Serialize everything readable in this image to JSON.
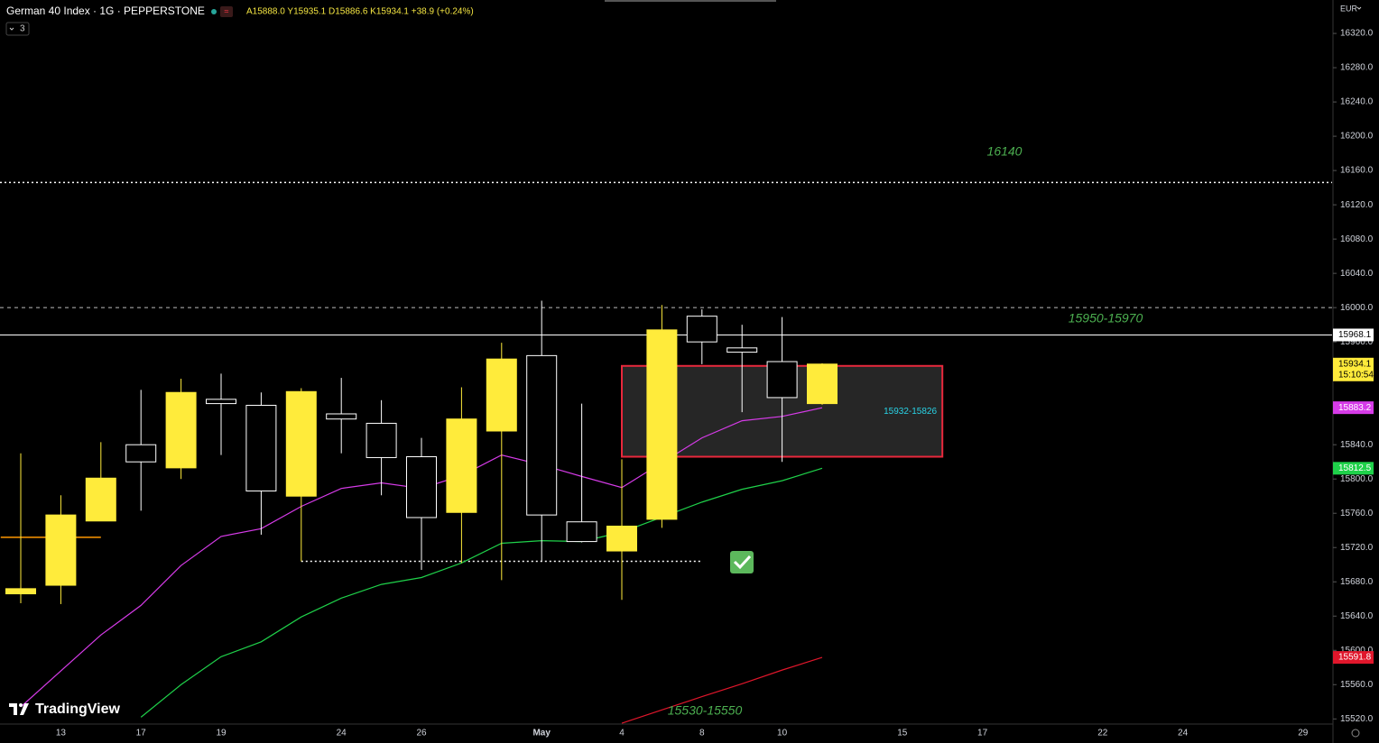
{
  "chart_data": {
    "type": "candlestick",
    "title": "German 40 Index · 1G · PEPPERSTONE",
    "ohlc_readout": "A15888.0 Y15935.1 D15886.6 K15934.1 +38.9 (+0.24%)",
    "indicator_count": "3",
    "currency": "EUR",
    "watermark": "TradingView",
    "countdown": "15:10:54",
    "categories": [
      null,
      "13",
      null,
      "17",
      null,
      "19",
      null,
      null,
      "24",
      null,
      "26",
      null,
      null,
      "May",
      null,
      "4",
      null,
      "8",
      null,
      "10",
      null,
      null,
      "15",
      null,
      "17",
      null,
      null,
      "22",
      null,
      "24",
      null,
      null,
      "29"
    ],
    "open": [
      15666,
      15676,
      15751,
      15840,
      15813,
      15893,
      15886,
      15780,
      15876,
      15865,
      15826,
      15761,
      15856,
      15944,
      15750,
      15716,
      15753,
      15990,
      15953,
      15937,
      15888.0,
      null,
      null,
      null,
      null,
      null,
      null,
      null,
      null,
      null,
      null,
      null,
      null
    ],
    "high": [
      15830,
      15781,
      15843,
      15904,
      15917,
      15923,
      15901,
      15906,
      15918,
      15892,
      15848,
      15907,
      15959,
      16008,
      15888,
      15823,
      16003,
      15998,
      15980,
      15989,
      15935.1,
      null,
      null,
      null,
      null,
      null,
      null,
      null,
      null,
      null,
      null,
      null,
      null
    ],
    "low": [
      15655,
      15654,
      15751,
      15763,
      15800,
      15828,
      15735,
      15704,
      15830,
      15781,
      15694,
      15702,
      15682,
      15704,
      15726,
      15659,
      15743,
      15934,
      15878,
      15820,
      15886.6,
      null,
      null,
      null,
      null,
      null,
      null,
      null,
      null,
      null,
      null,
      null,
      null
    ],
    "close": [
      15672,
      15758,
      15801,
      15820,
      15901,
      15888,
      15786,
      15902,
      15870,
      15825,
      15755,
      15870,
      15940,
      15758,
      15727,
      15745,
      15974,
      15960,
      15948,
      15895,
      15934.1,
      null,
      null,
      null,
      null,
      null,
      null,
      null,
      null,
      null,
      null,
      null,
      null
    ],
    "up_color": "#ffeb3b",
    "down_color": "#ffffff",
    "series": [
      {
        "color": "#d63be8",
        "values": [
          15534,
          15576,
          15618,
          15652.5,
          15699,
          15733,
          15742,
          15768,
          15789,
          15795.5,
          15789,
          15804,
          15828,
          15816.5,
          15803,
          15790,
          15819,
          15848,
          15868,
          15873,
          15883.2,
          null,
          null,
          null,
          null,
          null,
          null,
          null,
          null,
          null,
          null,
          null,
          null
        ]
      },
      {
        "color": "#1fd14a",
        "values": [
          null,
          null,
          null,
          15522,
          15560,
          15592.6,
          15610,
          15639,
          15661,
          15677,
          15685,
          15702,
          15725,
          15728,
          15727,
          15738,
          15755.5,
          15773,
          15788,
          15798,
          15812.5,
          null,
          null,
          null,
          null,
          null,
          null,
          null,
          null,
          null,
          null,
          null,
          null
        ]
      },
      {
        "color": "#e0162b",
        "values": [
          null,
          null,
          null,
          null,
          null,
          null,
          null,
          null,
          null,
          null,
          null,
          null,
          null,
          null,
          null,
          15515,
          15530.5,
          15546,
          15561,
          15577,
          15591.8,
          null,
          null,
          null,
          null,
          null,
          null,
          null,
          null,
          null,
          null,
          null,
          null
        ]
      }
    ],
    "levels": [
      {
        "value": 16146,
        "style": "dotted",
        "color": "#ffffff"
      },
      {
        "value": 16000,
        "style": "dashed",
        "color": "#bdbdbd"
      },
      {
        "value": 15968.1,
        "style": "solid",
        "color": "#ffffff",
        "tag": true
      }
    ],
    "segments": [
      {
        "value": 15704,
        "from": 7,
        "to": 17,
        "style": "dotted",
        "color": "#ffffff"
      },
      {
        "value": 15732,
        "from": -0.5,
        "to": 2,
        "style": "solid",
        "color": "#ff9800"
      }
    ],
    "zone": {
      "top": 15932,
      "bottom": 15826,
      "from": 15,
      "to": 23,
      "label": "15932-15826",
      "color": "#e8283c"
    },
    "annotations": [
      "16140",
      "15950-15970",
      "15530-15550"
    ],
    "ylim": [
      15514,
      16359
    ],
    "yticks": [
      {
        "value": 16320,
        "label": "16320.0"
      },
      {
        "value": 16280,
        "label": "16280.0"
      },
      {
        "value": 16240,
        "label": "16240.0"
      },
      {
        "value": 16200,
        "label": "16200.0"
      },
      {
        "value": 16160,
        "label": "16160.0"
      },
      {
        "value": 16120,
        "label": "16120.0"
      },
      {
        "value": 16080,
        "label": "16080.0"
      },
      {
        "value": 16040,
        "label": "16040.0"
      },
      {
        "value": 16000,
        "label": "16000.0"
      },
      {
        "value": 15960,
        "label": "15960.0"
      },
      {
        "value": 15920,
        "label": "15920.0"
      },
      {
        "value": 15880,
        "label": "15880.0"
      },
      {
        "value": 15840,
        "label": "15840.0"
      },
      {
        "value": 15800,
        "label": "15800.0"
      },
      {
        "value": 15760,
        "label": "15760.0"
      },
      {
        "value": 15720,
        "label": "15720.0"
      },
      {
        "value": 15680,
        "label": "15680.0"
      },
      {
        "value": 15640,
        "label": "15640.0"
      },
      {
        "value": 15600,
        "label": "15600.0"
      },
      {
        "value": 15560,
        "label": "15560.0"
      },
      {
        "value": 15520,
        "label": "15520.0"
      }
    ]
  }
}
